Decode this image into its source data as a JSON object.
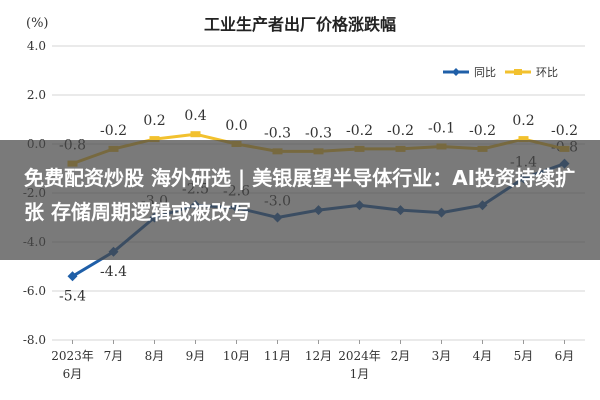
{
  "headline": "免费配资炒股 海外研选 | 美银展望半导体行业：AI投资持续扩张 存储周期逻辑或被改写",
  "chart_data": {
    "type": "line",
    "title": "工业生产者出厂价格涨跌幅",
    "unit_label": "(%)",
    "ylim": [
      -8.0,
      4.0
    ],
    "yticks": [
      "4.0",
      "2.0",
      "0.0",
      "-2.0",
      "-4.0",
      "-6.0",
      "-8.0"
    ],
    "grid": true,
    "legend_position": "top-right",
    "categories": [
      {
        "line1": "2023年",
        "line2": "6月"
      },
      {
        "line1": "7月",
        "line2": ""
      },
      {
        "line1": "8月",
        "line2": ""
      },
      {
        "line1": "9月",
        "line2": ""
      },
      {
        "line1": "10月",
        "line2": ""
      },
      {
        "line1": "11月",
        "line2": ""
      },
      {
        "line1": "12月",
        "line2": ""
      },
      {
        "line1": "2024年",
        "line2": "1月"
      },
      {
        "line1": "2月",
        "line2": ""
      },
      {
        "line1": "3月",
        "line2": ""
      },
      {
        "line1": "4月",
        "line2": ""
      },
      {
        "line1": "5月",
        "line2": ""
      },
      {
        "line1": "6月",
        "line2": ""
      }
    ],
    "series": [
      {
        "name": "同比",
        "color": "#1f5fa8",
        "values": [
          -5.4,
          -4.4,
          -3.0,
          -2.5,
          -2.6,
          -3.0,
          -2.7,
          -2.5,
          -2.7,
          -2.8,
          -2.5,
          -1.4,
          -0.8
        ],
        "labels": [
          "-5.4",
          "-4.4",
          "-3.0",
          "-2.5",
          "-2.6",
          "-3.0",
          "-2.7",
          "-2.5",
          "-2.7",
          "-2.8",
          "-2.5",
          "-1.4",
          "-0.8"
        ],
        "label_visible": [
          true,
          true,
          true,
          true,
          true,
          true,
          false,
          false,
          false,
          false,
          false,
          true,
          true
        ]
      },
      {
        "name": "环比",
        "color": "#f2c12e",
        "values": [
          -0.8,
          -0.2,
          0.2,
          0.4,
          0.0,
          -0.3,
          -0.3,
          -0.2,
          -0.2,
          -0.1,
          -0.2,
          0.2,
          -0.2
        ],
        "labels": [
          "-0.8",
          "-0.2",
          "0.2",
          "0.4",
          "0.0",
          "-0.3",
          "-0.3",
          "-0.2",
          "-0.2",
          "-0.1",
          "-0.2",
          "0.2",
          "-0.2"
        ],
        "label_visible": [
          true,
          true,
          true,
          true,
          true,
          true,
          true,
          true,
          true,
          true,
          true,
          true,
          true
        ]
      }
    ]
  }
}
